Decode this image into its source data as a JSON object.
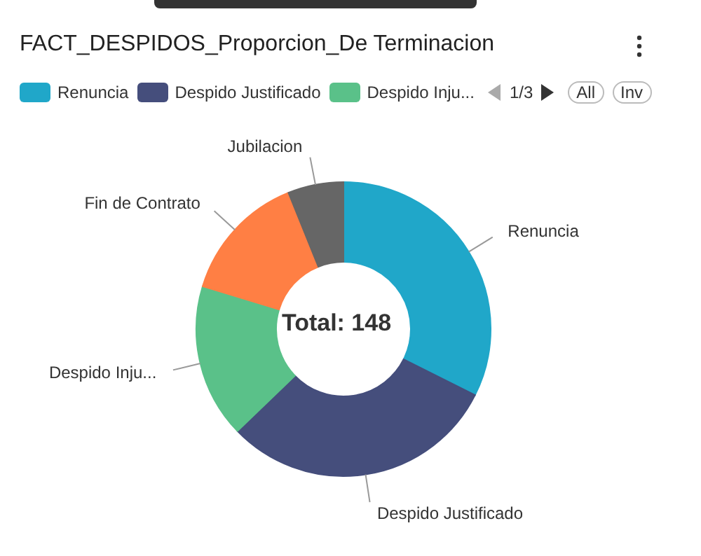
{
  "chart_data": {
    "type": "donut",
    "title": "FACT_DESPIDOS_Proporcion_De Terminacion",
    "categories": [
      "Renuncia",
      "Despido Justificado",
      "Despido Inju...",
      "Fin de Contrato",
      "Jubilacion"
    ],
    "values": [
      32.4,
      30.4,
      16.9,
      14.2,
      6.1
    ],
    "colors": [
      "#20a7c9",
      "#454e7c",
      "#5ac189",
      "#ff7f44",
      "#666666"
    ],
    "legend": "top left",
    "annotations": [
      "Total: 148",
      "1/3",
      "All",
      "Inv"
    ]
  }
}
